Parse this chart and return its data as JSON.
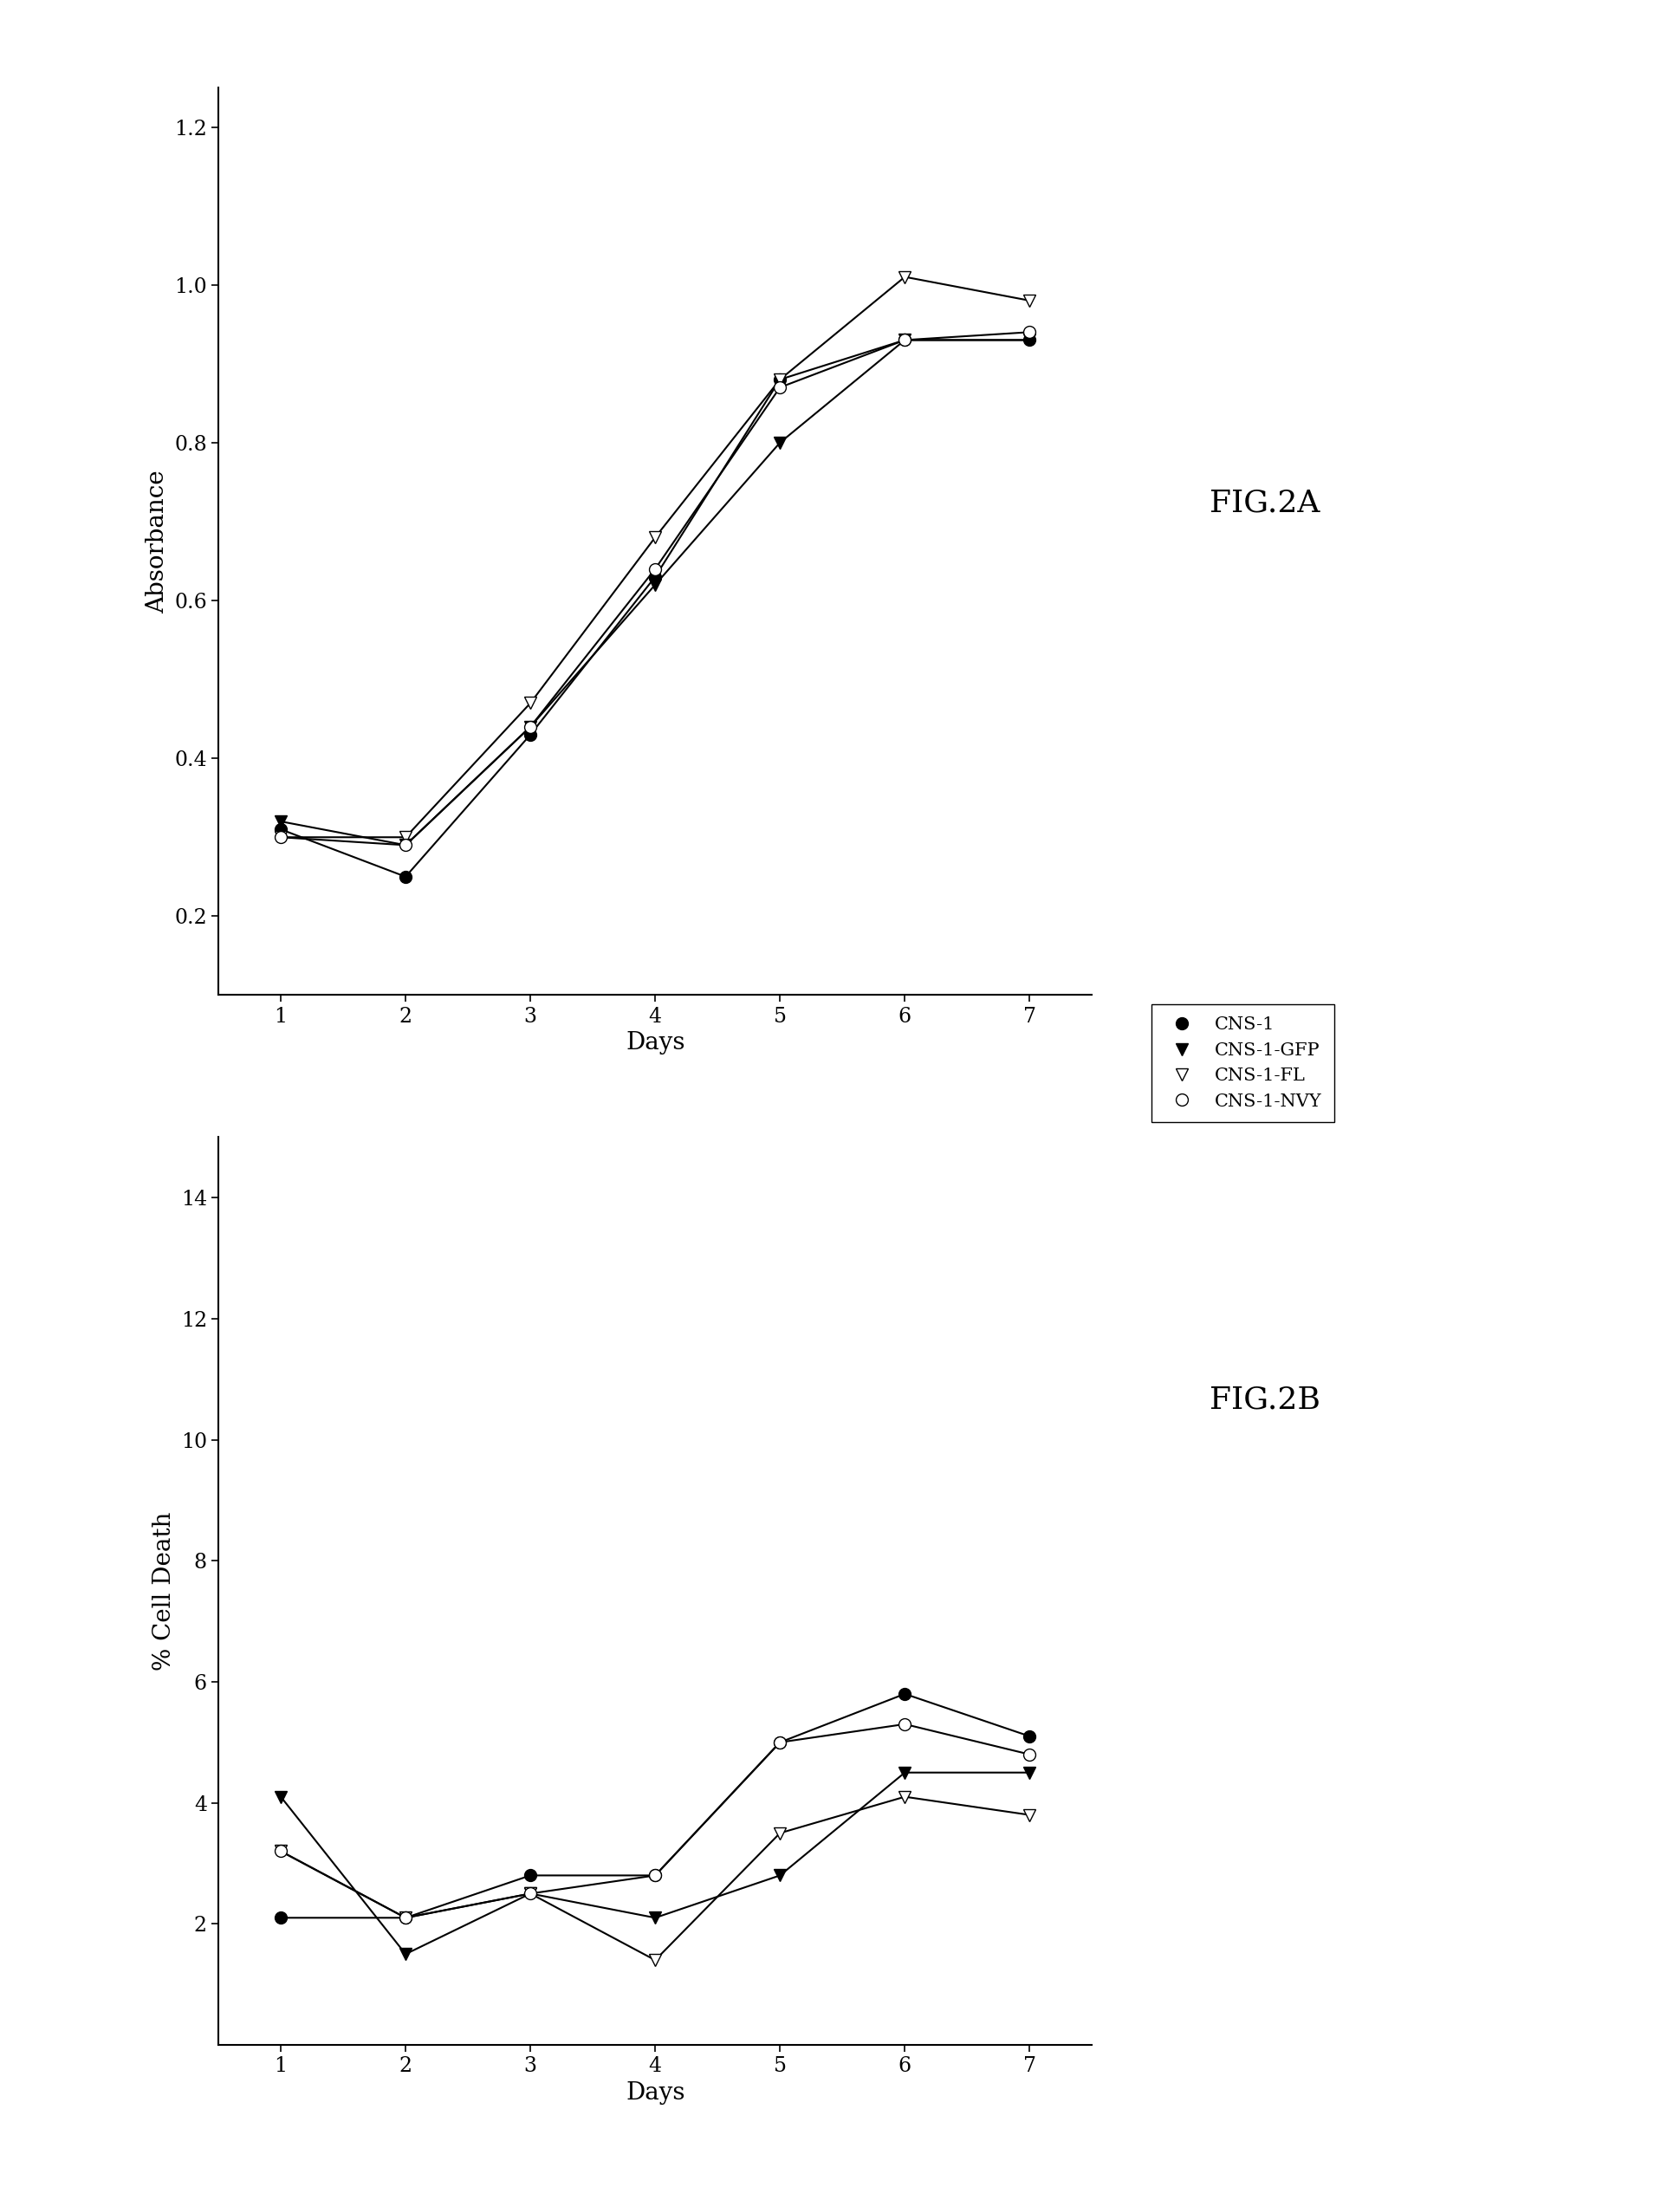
{
  "days": [
    1,
    2,
    3,
    4,
    5,
    6,
    7
  ],
  "fig2a": {
    "CNS-1": [
      0.31,
      0.25,
      0.43,
      0.63,
      0.88,
      0.93,
      0.93
    ],
    "CNS-1-GFP": [
      0.32,
      0.29,
      0.44,
      0.62,
      0.8,
      0.93,
      0.93
    ],
    "CNS-1-FL": [
      0.3,
      0.3,
      0.47,
      0.68,
      0.88,
      1.01,
      0.98
    ],
    "CNS-1-NVY": [
      0.3,
      0.29,
      0.44,
      0.64,
      0.87,
      0.93,
      0.94
    ],
    "ylabel": "Absorbance",
    "xlabel": "Days",
    "ylim": [
      0.1,
      1.25
    ],
    "yticks": [
      0.2,
      0.4,
      0.6,
      0.8,
      1.0,
      1.2
    ],
    "fig_label": "FIG.2A"
  },
  "fig2b": {
    "CNS-1": [
      2.1,
      2.1,
      2.8,
      2.8,
      5.0,
      5.8,
      5.1
    ],
    "CNS-1-GFP": [
      4.1,
      1.5,
      2.5,
      2.1,
      2.8,
      4.5,
      4.5
    ],
    "CNS-1-FL": [
      3.2,
      2.1,
      2.5,
      1.4,
      3.5,
      4.1,
      3.8
    ],
    "CNS-1-NVY": [
      3.2,
      2.1,
      2.5,
      2.8,
      5.0,
      5.3,
      4.8
    ],
    "ylabel": "% Cell Death",
    "xlabel": "Days",
    "ylim": [
      0,
      15
    ],
    "yticks": [
      2,
      4,
      6,
      8,
      10,
      12,
      14
    ],
    "fig_label": "FIG.2B"
  },
  "background_color": "#ffffff",
  "fontsize_label": 20,
  "fontsize_tick": 17,
  "fontsize_fig_label": 26,
  "fontsize_legend": 15,
  "marker_size": 10,
  "line_width": 1.5
}
